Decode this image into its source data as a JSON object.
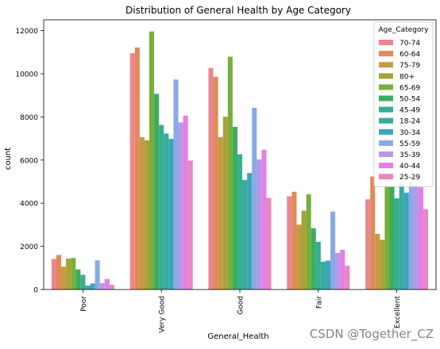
{
  "chart_data": {
    "type": "bar",
    "title": "Distribution of General Health by Age Category",
    "xlabel": "General_Health",
    "ylabel": "count",
    "categories": [
      "Poor",
      "Very Good",
      "Good",
      "Fair",
      "Excellent"
    ],
    "ylim": [
      0,
      12500
    ],
    "yticks": [
      0,
      2000,
      4000,
      6000,
      8000,
      10000,
      12000
    ],
    "legend": {
      "title": "Age_Category",
      "placement": "top-right"
    },
    "series": [
      {
        "name": "70-74",
        "color": "#e8878d",
        "values": [
          1420,
          10950,
          10270,
          4320,
          4180
        ]
      },
      {
        "name": "60-64",
        "color": "#e08a57",
        "values": [
          1600,
          11220,
          9860,
          4530,
          5240
        ]
      },
      {
        "name": "75-79",
        "color": "#c69a44",
        "values": [
          1060,
          7060,
          7060,
          3010,
          2580
        ]
      },
      {
        "name": "80+",
        "color": "#a9a23a",
        "values": [
          1430,
          6920,
          8010,
          3650,
          2300
        ]
      },
      {
        "name": "65-69",
        "color": "#7aae3b",
        "values": [
          1460,
          11960,
          10790,
          4410,
          4820
        ]
      },
      {
        "name": "50-54",
        "color": "#3aad5e",
        "values": [
          930,
          9070,
          7540,
          2840,
          4760
        ]
      },
      {
        "name": "45-49",
        "color": "#36ae8f",
        "values": [
          680,
          7630,
          6270,
          2210,
          4230
        ]
      },
      {
        "name": "18-24",
        "color": "#37ab9d",
        "values": [
          180,
          7230,
          5080,
          1290,
          4930
        ]
      },
      {
        "name": "30-34",
        "color": "#3ba5b8",
        "values": [
          280,
          6980,
          5400,
          1340,
          4490
        ]
      },
      {
        "name": "55-59",
        "color": "#8aa9e6",
        "values": [
          1350,
          9730,
          8420,
          3610,
          4970
        ]
      },
      {
        "name": "35-39",
        "color": "#b49ae8",
        "values": [
          300,
          7740,
          6030,
          1700,
          4830
        ]
      },
      {
        "name": "40-44",
        "color": "#e57ee6",
        "values": [
          490,
          8060,
          6480,
          1840,
          4740
        ]
      },
      {
        "name": "25-29",
        "color": "#ea87bf",
        "values": [
          220,
          5980,
          4250,
          1100,
          3720
        ]
      }
    ]
  },
  "watermark": "CSDN @Together_CZ"
}
